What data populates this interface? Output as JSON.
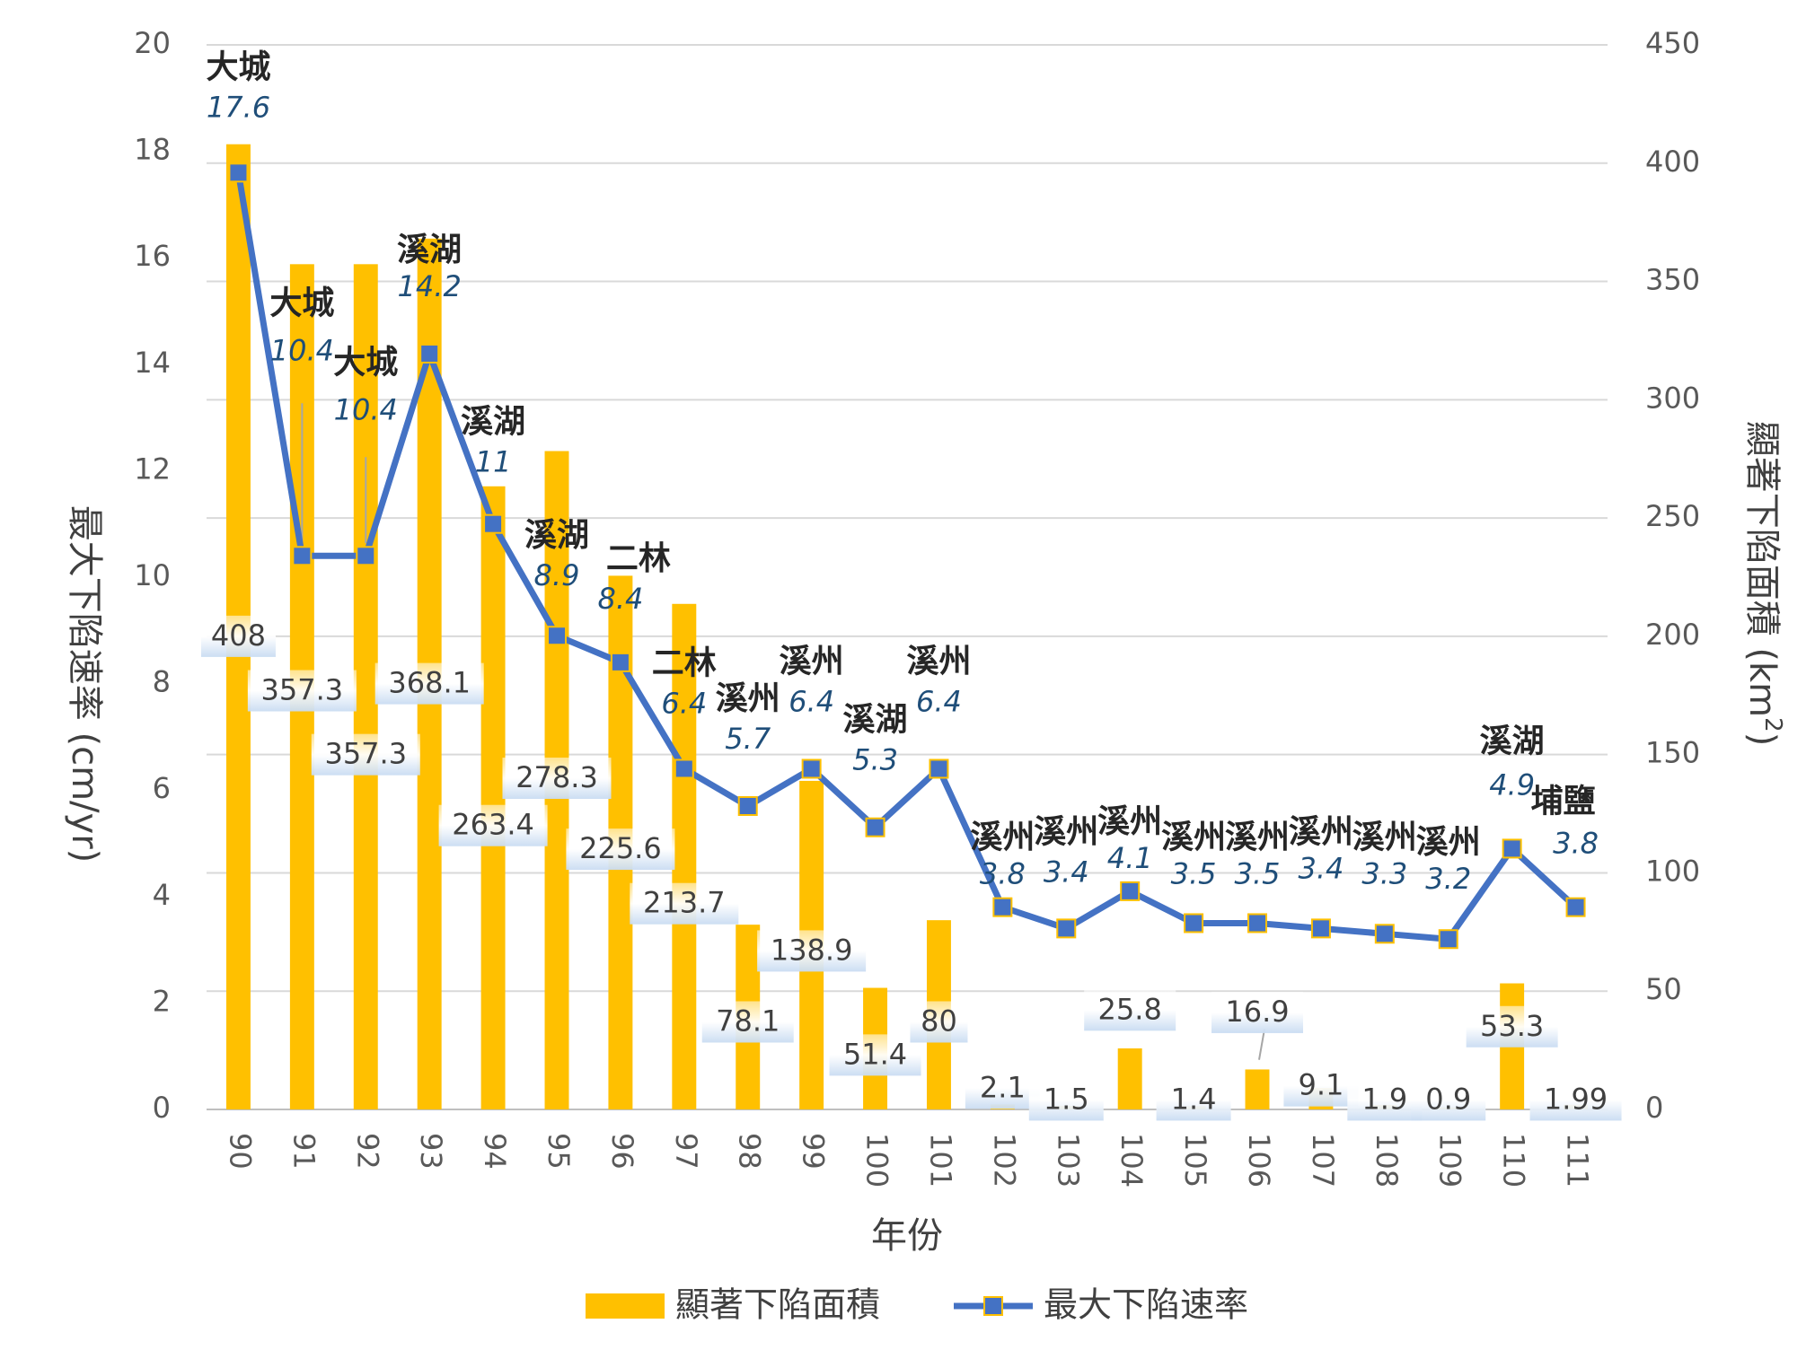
{
  "chart_data": {
    "type": "bar+line",
    "title": "",
    "xlabel": "年份",
    "ylabel_left": "最大下陷速率 (cm/yr)",
    "ylabel_right_main": "顯著下陷面積 (km",
    "ylabel_right_sup": "2",
    "ylabel_right_close": ")",
    "left_ylim": [
      0,
      20
    ],
    "left_ticks": [
      "0",
      "2",
      "4",
      "6",
      "8",
      "10",
      "12",
      "14",
      "16",
      "18",
      "20"
    ],
    "right_ylim": [
      0,
      450
    ],
    "right_ticks": [
      "0",
      "50",
      "100",
      "150",
      "200",
      "250",
      "300",
      "350",
      "400",
      "450"
    ],
    "categories": [
      "90",
      "91",
      "92",
      "93",
      "94",
      "95",
      "96",
      "97",
      "98",
      "99",
      "100",
      "101",
      "102",
      "103",
      "104",
      "105",
      "106",
      "107",
      "108",
      "109",
      "110",
      "111"
    ],
    "series": [
      {
        "name": "顯著下陷面積",
        "type": "bar",
        "axis": "right",
        "color": "#FFC000",
        "values": [
          408,
          357.3,
          357.3,
          368.1,
          263.4,
          278.3,
          225.6,
          213.7,
          78.1,
          138.9,
          51.4,
          80,
          2.1,
          1.5,
          25.8,
          1.4,
          16.9,
          9.1,
          1.9,
          0.9,
          53.3,
          1.99
        ],
        "labels": [
          "408",
          "357.3",
          "357.3",
          "368.1",
          "263.4",
          "278.3",
          "225.6",
          "213.7",
          "78.1",
          "138.9",
          "51.4",
          "80",
          "2.1",
          "1.5",
          "25.8",
          "1.4",
          "16.9",
          "9.1",
          "1.9",
          "0.9",
          "53.3",
          "1.99"
        ]
      },
      {
        "name": "最大下陷速率",
        "type": "line",
        "axis": "left",
        "color": "#4472C4",
        "marker_fill": "#4472C4",
        "marker_edge": "#FFC000",
        "values": [
          17.6,
          10.4,
          10.4,
          14.2,
          11,
          8.9,
          8.4,
          6.4,
          5.7,
          6.4,
          5.3,
          6.4,
          3.8,
          3.4,
          4.1,
          3.5,
          3.5,
          3.4,
          3.3,
          3.2,
          4.9,
          3.8
        ],
        "labels": [
          "17.6",
          "10.4",
          "10.4",
          "14.2",
          "11",
          "8.9",
          "8.4",
          "6.4",
          "5.7",
          "6.4",
          "5.3",
          "6.4",
          "3.8",
          "3.4",
          "4.1",
          "3.5",
          "3.5",
          "3.4",
          "3.3",
          "3.2",
          "4.9",
          "3.8"
        ],
        "locations": [
          "大城",
          "大城",
          "大城",
          "溪湖",
          "溪湖",
          "溪湖",
          "二林",
          "二林",
          "溪州",
          "溪州",
          "溪湖",
          "溪州",
          "溪州",
          "溪州",
          "溪州",
          "溪州",
          "溪州",
          "溪州",
          "溪州",
          "溪州",
          "溪湖",
          "埔鹽"
        ]
      }
    ],
    "legend": "bottom",
    "grid": true
  }
}
